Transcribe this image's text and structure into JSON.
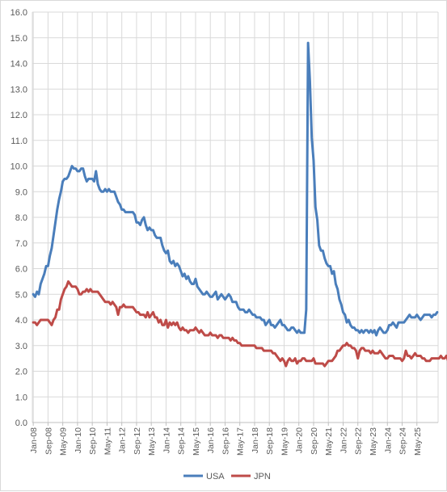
{
  "chart_data": {
    "type": "line",
    "title": "",
    "xlabel": "",
    "ylabel": "",
    "ylim": [
      0,
      16
    ],
    "y_ticks": [
      "0.0",
      "1.0",
      "2.0",
      "3.0",
      "4.0",
      "5.0",
      "6.0",
      "7.0",
      "8.0",
      "9.0",
      "10.0",
      "11.0",
      "12.0",
      "13.0",
      "14.0",
      "15.0",
      "16.0"
    ],
    "grid": true,
    "legend_position": "bottom",
    "start_month": "2008-01",
    "x_tick_labels": [
      "Jan-08",
      "Sep-08",
      "May-09",
      "Jan-10",
      "Sep-10",
      "May-11",
      "Jan-12",
      "Sep-12",
      "May-13",
      "Jan-14",
      "Sep-14",
      "May-15",
      "Jan-16",
      "Sep-16",
      "May-17",
      "Jan-18",
      "Sep-18",
      "May-19",
      "Jan-20",
      "Sep-20",
      "May-21",
      "Jan-22",
      "Sep-22",
      "May-23",
      "Jan-24",
      "Sep-24",
      "May-25"
    ],
    "x_tick_step_months": 8,
    "series": [
      {
        "name": "USA",
        "color": "#4a7ebb",
        "values": [
          5.0,
          4.9,
          5.1,
          5.0,
          5.4,
          5.6,
          5.8,
          6.1,
          6.1,
          6.5,
          6.8,
          7.3,
          7.8,
          8.3,
          8.7,
          9.0,
          9.4,
          9.5,
          9.5,
          9.6,
          9.8,
          10.0,
          9.9,
          9.9,
          9.8,
          9.8,
          9.9,
          9.9,
          9.6,
          9.4,
          9.5,
          9.5,
          9.5,
          9.4,
          9.8,
          9.3,
          9.1,
          9.0,
          9.0,
          9.1,
          9.0,
          9.1,
          9.0,
          9.0,
          9.0,
          8.8,
          8.6,
          8.5,
          8.3,
          8.3,
          8.2,
          8.2,
          8.2,
          8.2,
          8.2,
          8.1,
          7.8,
          7.8,
          7.7,
          7.9,
          8.0,
          7.7,
          7.5,
          7.6,
          7.5,
          7.5,
          7.3,
          7.2,
          7.2,
          7.2,
          6.9,
          6.7,
          6.6,
          6.7,
          6.3,
          6.2,
          6.3,
          6.1,
          6.2,
          6.1,
          5.9,
          5.7,
          5.8,
          5.6,
          5.7,
          5.5,
          5.4,
          5.4,
          5.6,
          5.3,
          5.2,
          5.1,
          5.0,
          5.0,
          5.1,
          5.0,
          4.9,
          4.9,
          5.0,
          5.1,
          4.8,
          4.9,
          5.0,
          4.9,
          4.8,
          4.9,
          5.0,
          4.9,
          4.7,
          4.7,
          4.7,
          4.5,
          4.4,
          4.4,
          4.4,
          4.3,
          4.3,
          4.4,
          4.3,
          4.2,
          4.2,
          4.1,
          4.1,
          4.1,
          4.0,
          4.0,
          3.8,
          3.9,
          4.0,
          3.8,
          3.8,
          3.7,
          3.8,
          3.9,
          4.0,
          3.8,
          3.8,
          3.7,
          3.6,
          3.6,
          3.7,
          3.7,
          3.6,
          3.5,
          3.6,
          3.5,
          3.5,
          3.5,
          4.4,
          14.8,
          13.3,
          11.1,
          10.2,
          8.4,
          7.9,
          6.9,
          6.7,
          6.7,
          6.4,
          6.2,
          6.1,
          6.1,
          5.8,
          5.9,
          5.4,
          5.2,
          4.8,
          4.6,
          4.3,
          4.2,
          3.9,
          4.0,
          3.8,
          3.7,
          3.7,
          3.6,
          3.6,
          3.5,
          3.6,
          3.5,
          3.6,
          3.6,
          3.5,
          3.6,
          3.5,
          3.6,
          3.4,
          3.6,
          3.7,
          3.6,
          3.5,
          3.5,
          3.6,
          3.8,
          3.8,
          3.9,
          3.8,
          3.7,
          3.9,
          3.9,
          3.9,
          3.9,
          4.0,
          4.1,
          4.2,
          4.1,
          4.1,
          4.1,
          4.2,
          4.1,
          4.0,
          4.1,
          4.2,
          4.2,
          4.2,
          4.2,
          4.1,
          4.2,
          4.2,
          4.3
        ]
      },
      {
        "name": "JPN",
        "color": "#be4b48",
        "values": [
          3.9,
          3.9,
          3.8,
          3.9,
          4.0,
          4.0,
          4.0,
          4.0,
          4.0,
          3.9,
          3.8,
          4.0,
          4.1,
          4.4,
          4.4,
          4.8,
          5.0,
          5.2,
          5.3,
          5.5,
          5.4,
          5.3,
          5.3,
          5.3,
          5.2,
          5.0,
          5.0,
          5.1,
          5.1,
          5.2,
          5.1,
          5.2,
          5.1,
          5.1,
          5.1,
          5.1,
          5.0,
          4.9,
          4.8,
          4.7,
          4.7,
          4.7,
          4.6,
          4.7,
          4.6,
          4.5,
          4.2,
          4.5,
          4.5,
          4.6,
          4.5,
          4.5,
          4.5,
          4.5,
          4.5,
          4.4,
          4.3,
          4.3,
          4.2,
          4.2,
          4.2,
          4.1,
          4.3,
          4.1,
          4.2,
          4.3,
          4.1,
          4.1,
          3.9,
          4.0,
          3.8,
          3.8,
          4.0,
          3.7,
          3.9,
          3.8,
          3.9,
          3.8,
          3.9,
          3.7,
          3.6,
          3.7,
          3.6,
          3.6,
          3.5,
          3.6,
          3.6,
          3.6,
          3.7,
          3.6,
          3.5,
          3.6,
          3.5,
          3.4,
          3.4,
          3.4,
          3.5,
          3.4,
          3.4,
          3.4,
          3.3,
          3.4,
          3.4,
          3.3,
          3.3,
          3.3,
          3.3,
          3.2,
          3.3,
          3.2,
          3.2,
          3.1,
          3.1,
          3.0,
          3.0,
          3.0,
          3.0,
          3.0,
          3.0,
          3.0,
          3.0,
          2.9,
          2.9,
          2.9,
          2.9,
          2.8,
          2.8,
          2.8,
          2.8,
          2.8,
          2.7,
          2.7,
          2.6,
          2.5,
          2.4,
          2.5,
          2.4,
          2.2,
          2.4,
          2.5,
          2.4,
          2.4,
          2.5,
          2.3,
          2.4,
          2.4,
          2.5,
          2.5,
          2.4,
          2.4,
          2.4,
          2.4,
          2.5,
          2.3,
          2.3,
          2.3,
          2.3,
          2.3,
          2.2,
          2.3,
          2.4,
          2.4,
          2.4,
          2.5,
          2.6,
          2.8,
          2.8,
          2.9,
          3.0,
          3.0,
          3.1,
          3.0,
          3.0,
          2.9,
          2.9,
          2.8,
          2.5,
          2.8,
          2.9,
          2.9,
          2.8,
          2.8,
          2.8,
          2.7,
          2.8,
          2.7,
          2.7,
          2.7,
          2.8,
          2.7,
          2.6,
          2.5,
          2.5,
          2.6,
          2.6,
          2.6,
          2.5,
          2.5,
          2.5,
          2.5,
          2.4,
          2.5,
          2.8,
          2.6,
          2.6,
          2.5,
          2.6,
          2.7,
          2.6,
          2.6,
          2.6,
          2.5,
          2.5,
          2.4,
          2.4,
          2.4,
          2.5,
          2.5,
          2.5,
          2.5,
          2.5,
          2.6,
          2.5,
          2.5,
          2.6,
          2.4,
          2.5,
          2.4,
          2.5,
          2.4,
          2.5,
          2.5,
          2.5,
          2.5,
          2.4,
          2.5,
          2.5,
          2.5,
          2.5,
          2.3
        ]
      }
    ]
  }
}
